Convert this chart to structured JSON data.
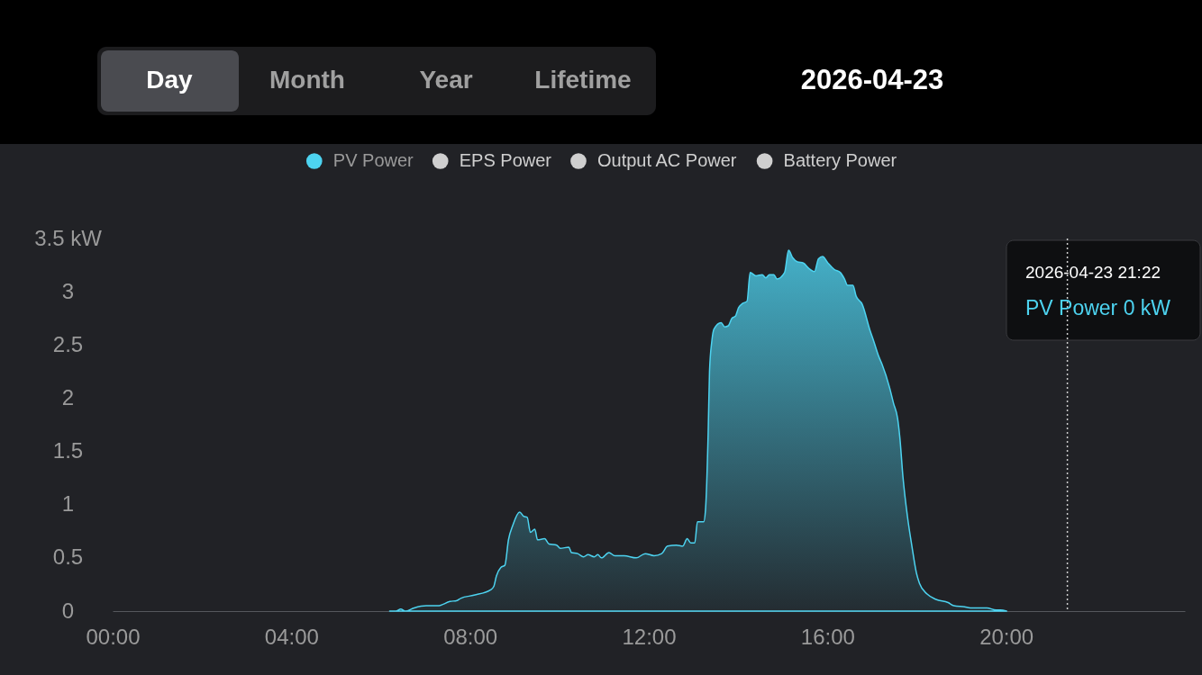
{
  "chart_data": {
    "type": "area",
    "annotations": [
      "Day",
      "Month",
      "Year",
      "Lifetime",
      "2026-04-23",
      "2026-04-23 21:22",
      "PV Power 0 kW"
    ],
    "x": [
      6.2,
      6.34,
      6.45,
      6.55,
      6.75,
      7.02,
      7.28,
      7.55,
      7.71,
      7.79,
      8.09,
      8.46,
      8.53,
      8.59,
      8.69,
      8.78,
      8.86,
      8.96,
      9.11,
      9.2,
      9.28,
      9.35,
      9.45,
      9.51,
      9.67,
      9.77,
      9.94,
      10.02,
      10.21,
      10.27,
      10.41,
      10.54,
      10.64,
      10.78,
      10.86,
      10.94,
      11.11,
      11.24,
      11.45,
      11.72,
      11.92,
      12.12,
      12.29,
      12.42,
      12.62,
      12.76,
      12.86,
      12.94,
      13.03,
      13.09,
      13.23,
      13.27,
      13.33,
      13.36,
      13.41,
      13.46,
      13.62,
      13.7,
      13.78,
      13.86,
      13.94,
      14.01,
      14.1,
      14.2,
      14.27,
      14.4,
      14.54,
      14.62,
      14.7,
      14.8,
      14.87,
      15.04,
      15.13,
      15.22,
      15.33,
      15.46,
      15.58,
      15.71,
      15.8,
      15.89,
      16.01,
      16.15,
      16.29,
      16.38,
      16.45,
      16.57,
      16.64,
      16.78,
      16.95,
      17.04,
      17.15,
      17.22,
      17.39,
      17.48,
      17.57,
      17.62,
      17.69,
      17.79,
      17.89,
      17.99,
      18.06,
      18.23,
      18.43,
      18.7,
      18.83,
      19.07,
      19.2,
      19.37,
      19.57,
      19.77,
      19.87,
      20.01
    ],
    "series": [
      {
        "name": "PV Power",
        "color": "#4dd3f0",
        "values": [
          0,
          0,
          0.02,
          0,
          0.03,
          0.05,
          0.05,
          0.09,
          0.1,
          0.12,
          0.15,
          0.2,
          0.23,
          0.33,
          0.41,
          0.43,
          0.67,
          0.81,
          0.93,
          0.89,
          0.88,
          0.74,
          0.77,
          0.67,
          0.68,
          0.63,
          0.62,
          0.59,
          0.6,
          0.55,
          0.54,
          0.51,
          0.53,
          0.51,
          0.53,
          0.5,
          0.55,
          0.52,
          0.52,
          0.5,
          0.54,
          0.52,
          0.54,
          0.61,
          0.62,
          0.61,
          0.68,
          0.64,
          0.64,
          0.84,
          0.84,
          0.95,
          1.68,
          2.25,
          2.53,
          2.65,
          2.71,
          2.67,
          2.68,
          2.75,
          2.77,
          2.85,
          2.89,
          2.91,
          3.18,
          3.15,
          3.16,
          3.13,
          3.16,
          3.16,
          3.12,
          3.18,
          3.39,
          3.32,
          3.28,
          3.27,
          3.22,
          3.19,
          3.31,
          3.33,
          3.27,
          3.21,
          3.18,
          3.12,
          3.06,
          3.06,
          2.96,
          2.88,
          2.64,
          2.53,
          2.39,
          2.32,
          2.1,
          1.95,
          1.81,
          1.63,
          1.26,
          0.89,
          0.61,
          0.36,
          0.26,
          0.16,
          0.11,
          0.08,
          0.05,
          0.04,
          0.03,
          0.03,
          0.03,
          0.01,
          0.01,
          0
        ]
      },
      {
        "name": "EPS Power",
        "color": "#cfcfcf",
        "values": [
          null,
          null,
          null,
          null,
          null,
          null,
          null,
          null,
          null,
          null,
          null,
          null,
          null,
          null,
          null,
          null,
          null,
          null,
          null,
          null,
          null,
          null,
          null,
          null,
          null,
          null,
          null,
          null,
          null,
          null,
          null,
          null,
          null,
          null,
          null,
          null,
          null,
          null,
          null,
          null,
          null,
          null,
          null,
          null,
          null,
          null,
          null,
          null,
          null,
          null,
          null,
          null,
          null,
          null,
          null,
          null,
          null,
          null,
          null,
          null,
          null,
          null,
          null,
          null,
          null,
          null,
          null,
          null,
          null,
          null,
          null,
          null,
          null,
          null,
          null,
          null,
          null,
          null,
          null,
          null,
          null,
          null,
          null,
          null,
          null,
          null,
          null,
          null,
          null,
          null,
          null,
          null,
          null,
          null,
          null,
          null,
          null,
          null,
          null,
          null,
          null,
          null,
          null,
          null,
          null,
          null,
          null,
          null,
          null,
          null,
          null,
          null
        ]
      },
      {
        "name": "Output AC Power",
        "color": "#cfcfcf",
        "values": [
          null,
          null,
          null,
          null,
          null,
          null,
          null,
          null,
          null,
          null,
          null,
          null,
          null,
          null,
          null,
          null,
          null,
          null,
          null,
          null,
          null,
          null,
          null,
          null,
          null,
          null,
          null,
          null,
          null,
          null,
          null,
          null,
          null,
          null,
          null,
          null,
          null,
          null,
          null,
          null,
          null,
          null,
          null,
          null,
          null,
          null,
          null,
          null,
          null,
          null,
          null,
          null,
          null,
          null,
          null,
          null,
          null,
          null,
          null,
          null,
          null,
          null,
          null,
          null,
          null,
          null,
          null,
          null,
          null,
          null,
          null,
          null,
          null,
          null,
          null,
          null,
          null,
          null,
          null,
          null,
          null,
          null,
          null,
          null,
          null,
          null,
          null,
          null,
          null,
          null,
          null,
          null,
          null,
          null,
          null,
          null,
          null,
          null,
          null,
          null,
          null,
          null,
          null,
          null,
          null,
          null,
          null,
          null,
          null,
          null,
          null,
          null
        ]
      },
      {
        "name": "Battery Power",
        "color": "#cfcfcf",
        "values": [
          null,
          null,
          null,
          null,
          null,
          null,
          null,
          null,
          null,
          null,
          null,
          null,
          null,
          null,
          null,
          null,
          null,
          null,
          null,
          null,
          null,
          null,
          null,
          null,
          null,
          null,
          null,
          null,
          null,
          null,
          null,
          null,
          null,
          null,
          null,
          null,
          null,
          null,
          null,
          null,
          null,
          null,
          null,
          null,
          null,
          null,
          null,
          null,
          null,
          null,
          null,
          null,
          null,
          null,
          null,
          null,
          null,
          null,
          null,
          null,
          null,
          null,
          null,
          null,
          null,
          null,
          null,
          null,
          null,
          null,
          null,
          null,
          null,
          null,
          null,
          null,
          null,
          null,
          null,
          null,
          null,
          null,
          null,
          null,
          null,
          null,
          null,
          null,
          null,
          null,
          null,
          null,
          null,
          null,
          null,
          null,
          null,
          null,
          null,
          null,
          null,
          null,
          null,
          null,
          null,
          null,
          null,
          null,
          null,
          null,
          null,
          null
        ]
      }
    ],
    "xlim": [
      0,
      24
    ],
    "xticks": [
      {
        "value": 0,
        "label": "00:00"
      },
      {
        "value": 4,
        "label": "04:00"
      },
      {
        "value": 8,
        "label": "08:00"
      },
      {
        "value": 12,
        "label": "12:00"
      },
      {
        "value": 16,
        "label": "16:00"
      },
      {
        "value": 20,
        "label": "20:00"
      }
    ],
    "ylim": [
      0,
      3.5
    ],
    "yticks": [
      0,
      0.5,
      1,
      1.5,
      2,
      2.5,
      3,
      {
        "value": 3.5,
        "label": "3.5 kW"
      }
    ],
    "ref_lines": [
      {
        "axis": "x",
        "value": 21.37,
        "color": "#cfcfcf",
        "line_style": "dotted"
      }
    ],
    "grid": false,
    "legend": "top"
  }
}
